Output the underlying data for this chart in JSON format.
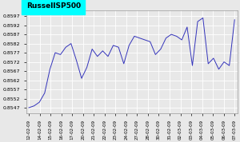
{
  "title": "RussellSP500",
  "title_bg": "#00ffff",
  "line_color": "#3333bb",
  "bg_color": "#e8e8e8",
  "grid_color": "#ffffff",
  "x_labels": [
    "12-02-09",
    "14-02-09",
    "15-02-09",
    "16-02-09",
    "17-02-09",
    "20-02-09",
    "21-02-09",
    "22-02-09",
    "23-02-09",
    "24-02-09",
    "27-02-09",
    "28-02-09",
    "30-02-09",
    "31-02-09",
    "02-03-09",
    "03-03-09",
    "04-03-09",
    "05-03-09",
    "06-03-09",
    "07-03-09"
  ],
  "y_values": [
    0.8547,
    0.8548,
    0.855,
    0.8555,
    0.8568,
    0.8577,
    0.8576,
    0.858,
    0.8582,
    0.8573,
    0.8563,
    0.8569,
    0.8579,
    0.8575,
    0.8578,
    0.8575,
    0.8581,
    0.858,
    0.8571,
    0.8581,
    0.8586,
    0.8585,
    0.8584,
    0.8583,
    0.8576,
    0.8579,
    0.8585,
    0.8587,
    0.8586,
    0.8584,
    0.8591,
    0.857,
    0.8594,
    0.8596,
    0.8571,
    0.8574,
    0.8568,
    0.8572,
    0.857,
    0.8595
  ],
  "yticks": [
    0.8547,
    0.8552,
    0.8557,
    0.8562,
    0.8567,
    0.8572,
    0.8577,
    0.8582,
    0.8587,
    0.8592,
    0.8597
  ],
  "ylim_min": 0.8544,
  "ylim_max": 0.86,
  "figwidth": 3.0,
  "figheight": 1.78,
  "dpi": 100
}
